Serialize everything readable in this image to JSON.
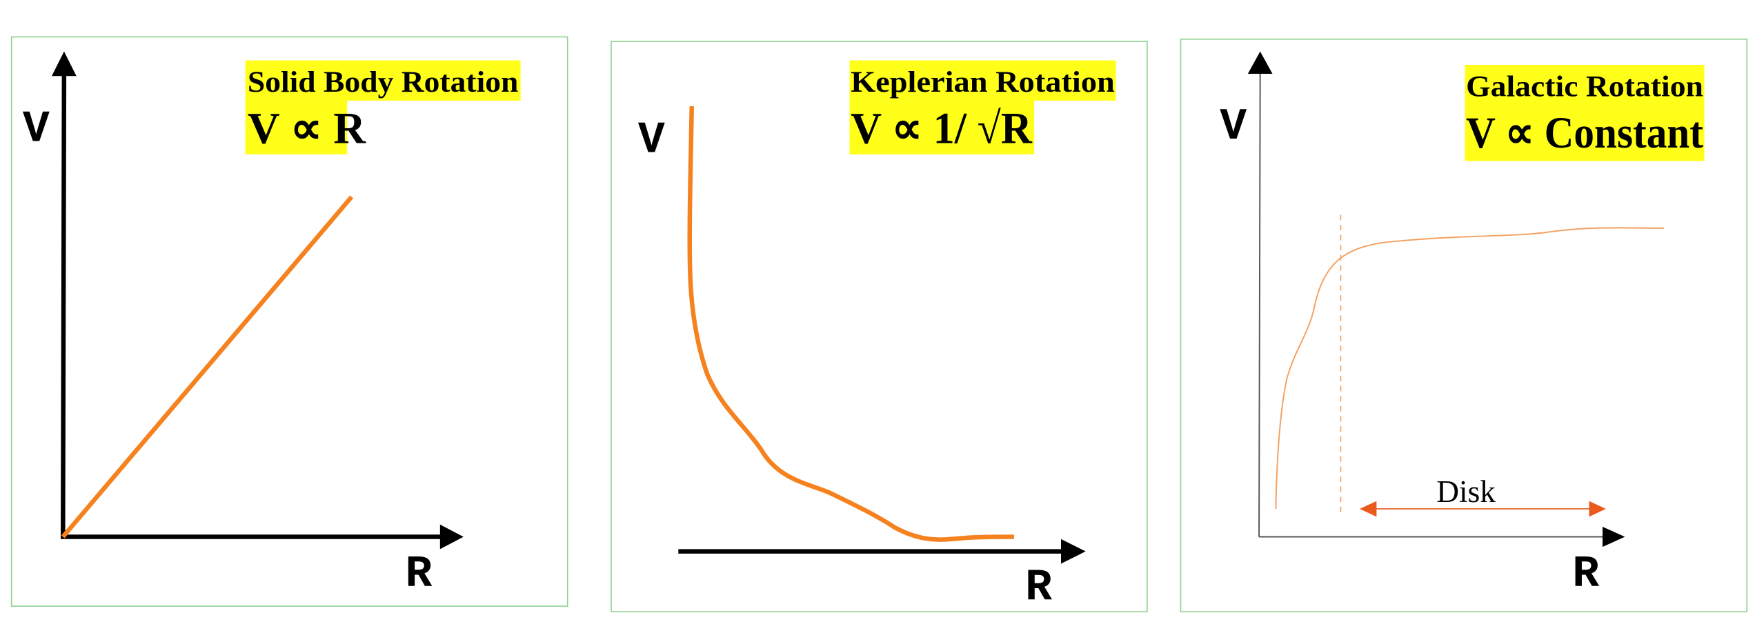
{
  "panels": [
    {
      "title": "Solid Body Rotation",
      "formula": "V ∝ R",
      "y_label": "V",
      "x_label": "R"
    },
    {
      "title": "Keplerian Rotation",
      "formula": "V ∝ 1/ √R",
      "y_label": "V",
      "x_label": "R"
    },
    {
      "title": "Galactic Rotation",
      "formula": "V ∝ Constant",
      "y_label": "V",
      "x_label": "R",
      "annotation": "Disk"
    }
  ]
}
